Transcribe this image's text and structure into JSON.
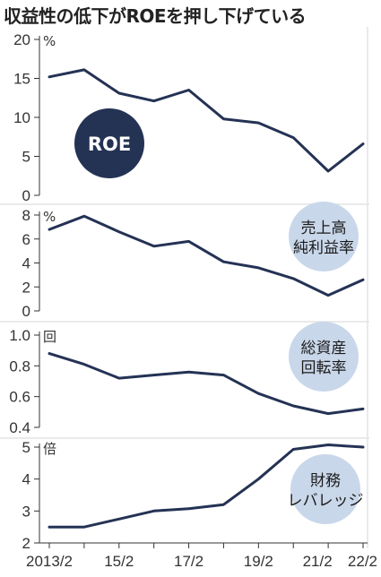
{
  "title": "収益性の低下がROEを押し下げている",
  "colors": {
    "line": "#243254",
    "dark_badge": "#243254",
    "light_badge": "#c9d7ea",
    "axis": "#333333",
    "frame": "#e3e3e3"
  },
  "chart_data": {
    "type": "line",
    "x": [
      "2013/2",
      "14/2",
      "15/2",
      "16/2",
      "17/2",
      "18/2",
      "19/2",
      "20/2",
      "21/2",
      "22/2"
    ],
    "x_tick_labels": [
      "2013/2",
      "15/2",
      "17/2",
      "19/2",
      "21/2",
      "22/2"
    ],
    "panels": [
      {
        "label": "ROE",
        "unit": "%",
        "ylim": [
          0,
          20
        ],
        "yticks": [
          "0",
          "5",
          "10",
          "15",
          "20"
        ],
        "values": [
          15.2,
          16.1,
          13.1,
          12.1,
          13.5,
          9.8,
          9.3,
          7.4,
          3.1,
          6.6
        ]
      },
      {
        "label": "売上高純利益率",
        "label_lines": [
          "売上高",
          "純利益率"
        ],
        "unit": "%",
        "ylim": [
          0,
          8
        ],
        "yticks": [
          "0",
          "2",
          "4",
          "6",
          "8"
        ],
        "values": [
          6.8,
          7.9,
          6.6,
          5.4,
          5.8,
          4.1,
          3.6,
          2.7,
          1.3,
          2.6
        ]
      },
      {
        "label": "総資産回転率",
        "label_lines": [
          "総資産",
          "回転率"
        ],
        "unit": "回",
        "ylim": [
          0.4,
          1.0
        ],
        "yticks": [
          "0.4",
          "0.6",
          "0.8",
          "1.0"
        ],
        "values": [
          0.88,
          0.81,
          0.72,
          0.74,
          0.76,
          0.74,
          0.62,
          0.54,
          0.49,
          0.52
        ]
      },
      {
        "label": "財務レバレッジ",
        "label_lines": [
          "財務",
          "レバレッジ"
        ],
        "unit": "倍",
        "ylim": [
          2,
          5
        ],
        "yticks": [
          "2",
          "3",
          "4",
          "5"
        ],
        "values": [
          2.5,
          2.5,
          2.75,
          3.0,
          3.07,
          3.2,
          4.0,
          4.93,
          5.07,
          5.0
        ]
      }
    ]
  }
}
